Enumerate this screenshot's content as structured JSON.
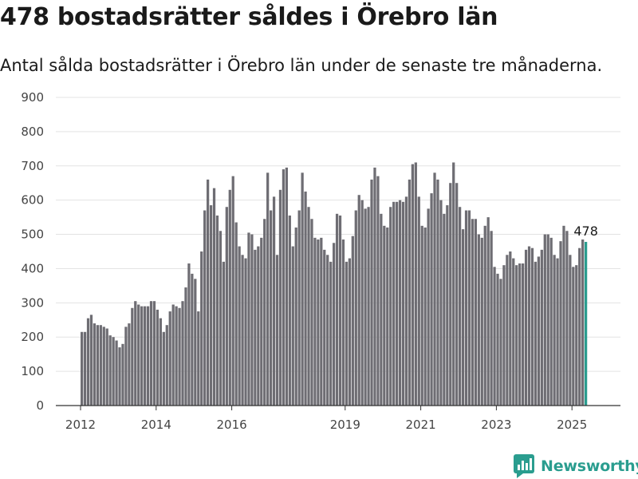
{
  "title": "478 bostadsrätter såldes i Örebro län",
  "subtitle": "Antal sålda bostadsrätter i Örebro län under de senaste tre månaderna.",
  "brand": {
    "name": "Newsworthy",
    "icon": "newsworthy-logo-icon"
  },
  "colors": {
    "bar": "#6e6d73",
    "highlight": "#2a9d8f",
    "grid": "#e3e3e3",
    "axis": "#333333"
  },
  "chart_data": {
    "type": "bar",
    "start": "2012-01",
    "frequency": "monthly",
    "ylim": [
      0,
      900
    ],
    "yticks": [
      0,
      100,
      200,
      300,
      400,
      500,
      600,
      700,
      800,
      900
    ],
    "xticks": [
      "2012",
      "2014",
      "2016",
      "2019",
      "2021",
      "2023",
      "2025"
    ],
    "grid": true,
    "last_value_label": "478",
    "values": [
      215,
      215,
      255,
      265,
      240,
      235,
      235,
      230,
      225,
      205,
      200,
      190,
      170,
      180,
      230,
      240,
      285,
      305,
      295,
      290,
      290,
      290,
      305,
      305,
      280,
      255,
      215,
      235,
      275,
      295,
      290,
      285,
      305,
      345,
      415,
      385,
      370,
      275,
      450,
      570,
      660,
      585,
      635,
      555,
      510,
      420,
      580,
      630,
      670,
      535,
      465,
      440,
      430,
      505,
      500,
      455,
      465,
      490,
      545,
      680,
      570,
      610,
      440,
      630,
      690,
      695,
      555,
      465,
      520,
      570,
      680,
      625,
      580,
      545,
      490,
      485,
      490,
      455,
      440,
      420,
      475,
      560,
      555,
      485,
      420,
      430,
      495,
      570,
      615,
      600,
      575,
      580,
      660,
      695,
      670,
      560,
      525,
      520,
      580,
      595,
      595,
      600,
      595,
      610,
      660,
      705,
      710,
      610,
      525,
      520,
      575,
      620,
      680,
      660,
      600,
      560,
      585,
      650,
      710,
      650,
      580,
      515,
      570,
      570,
      545,
      545,
      500,
      490,
      525,
      550,
      510,
      405,
      385,
      370,
      410,
      440,
      450,
      430,
      410,
      415,
      415,
      455,
      465,
      460,
      420,
      435,
      455,
      500,
      500,
      490,
      440,
      430,
      480,
      525,
      510,
      440,
      405,
      410,
      460,
      485,
      478
    ]
  }
}
